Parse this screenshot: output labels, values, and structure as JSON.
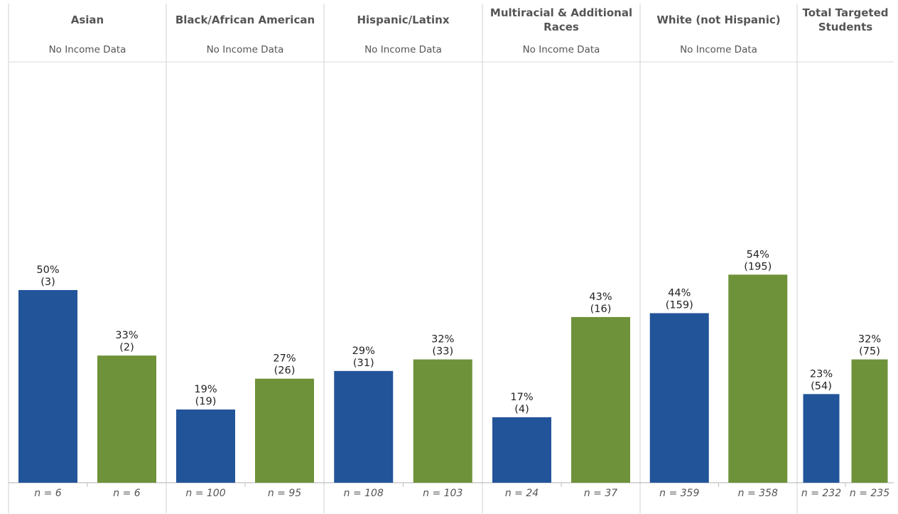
{
  "colors": {
    "series_1": "#22549A",
    "series_2": "#6E9239",
    "divider": "#D9D9D9",
    "baseline": "#BFBFBF"
  },
  "chart_data": {
    "type": "bar",
    "title": "",
    "xlabel": "",
    "ylabel": "",
    "ylim": [
      0,
      100
    ],
    "grid": false,
    "legend": "none",
    "panels": [
      {
        "title_lines": [
          "Asian"
        ],
        "subtitle": "No Income Data",
        "bars": [
          {
            "pct": 50,
            "pct_label": "50%",
            "count_label": "(3)",
            "n_label": "n = 6"
          },
          {
            "pct": 33,
            "pct_label": "33%",
            "count_label": "(2)",
            "n_label": "n = 6"
          }
        ]
      },
      {
        "title_lines": [
          "Black/African American"
        ],
        "subtitle": "No Income Data",
        "bars": [
          {
            "pct": 19,
            "pct_label": "19%",
            "count_label": "(19)",
            "n_label": "n = 100"
          },
          {
            "pct": 27,
            "pct_label": "27%",
            "count_label": "(26)",
            "n_label": "n = 95"
          }
        ]
      },
      {
        "title_lines": [
          "Hispanic/Latinx"
        ],
        "subtitle": "No Income Data",
        "bars": [
          {
            "pct": 29,
            "pct_label": "29%",
            "count_label": "(31)",
            "n_label": "n = 108"
          },
          {
            "pct": 32,
            "pct_label": "32%",
            "count_label": "(33)",
            "n_label": "n = 103"
          }
        ]
      },
      {
        "title_lines": [
          "Multiracial & Additional",
          "Races"
        ],
        "subtitle": "No Income Data",
        "bars": [
          {
            "pct": 17,
            "pct_label": "17%",
            "count_label": "(4)",
            "n_label": "n = 24"
          },
          {
            "pct": 43,
            "pct_label": "43%",
            "count_label": "(16)",
            "n_label": "n = 37"
          }
        ]
      },
      {
        "title_lines": [
          "White (not Hispanic)"
        ],
        "subtitle": "No Income Data",
        "bars": [
          {
            "pct": 44,
            "pct_label": "44%",
            "count_label": "(159)",
            "n_label": "n = 359"
          },
          {
            "pct": 54,
            "pct_label": "54%",
            "count_label": "(195)",
            "n_label": "n = 358"
          }
        ]
      },
      {
        "title_lines": [
          "Total Targeted",
          "Students"
        ],
        "subtitle": "",
        "bars": [
          {
            "pct": 23,
            "pct_label": "23%",
            "count_label": "(54)",
            "n_label": "n = 232"
          },
          {
            "pct": 32,
            "pct_label": "32%",
            "count_label": "(75)",
            "n_label": "n = 235"
          }
        ]
      }
    ]
  }
}
